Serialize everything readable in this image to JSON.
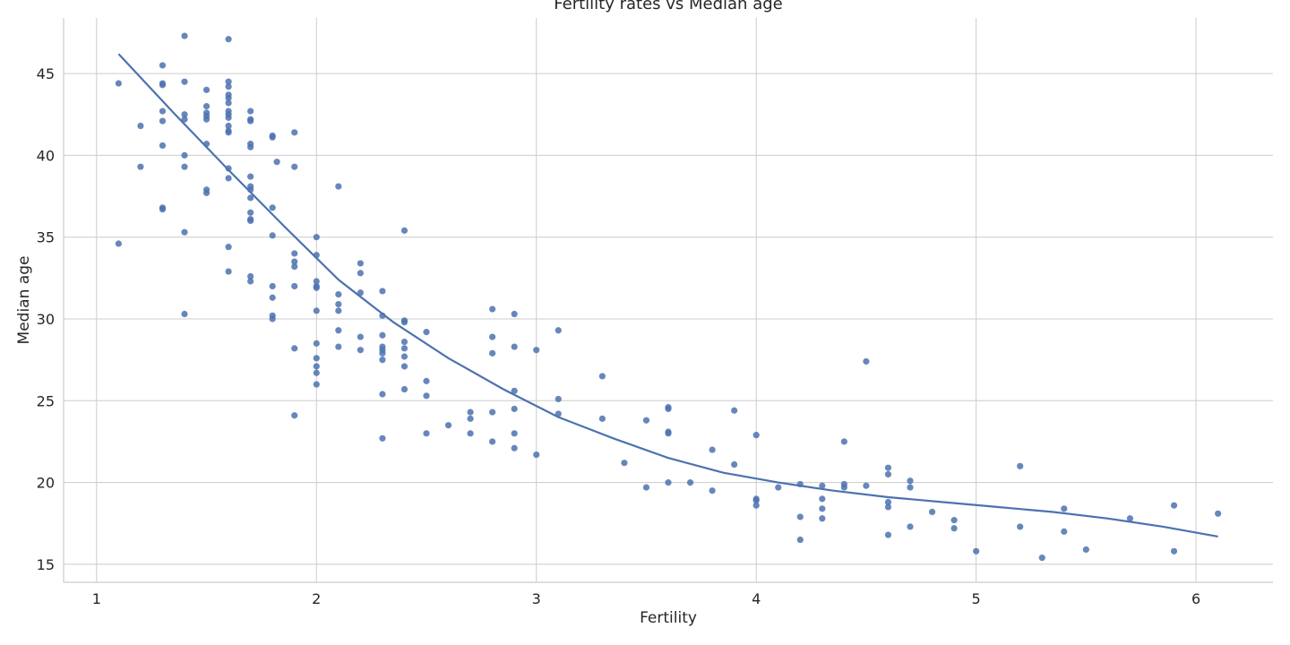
{
  "chart_data": {
    "type": "scatter",
    "title": "Fertility rates vs Median age",
    "xlabel": "Fertility",
    "ylabel": "Median age",
    "xlim": [
      0.85,
      6.35
    ],
    "ylim": [
      13.9,
      48.4
    ],
    "xticks": [
      "1",
      "2",
      "3",
      "4",
      "5",
      "6"
    ],
    "yticks": [
      "15",
      "20",
      "25",
      "30",
      "35",
      "40",
      "45"
    ],
    "grid": true,
    "colors": {
      "points": "#4c72b0",
      "line": "#4c72b0",
      "grid": "#cccccc",
      "axis": "#cccccc"
    },
    "points": [
      [
        1.1,
        44.4
      ],
      [
        1.1,
        34.6
      ],
      [
        1.2,
        41.8
      ],
      [
        1.2,
        39.3
      ],
      [
        1.3,
        45.5
      ],
      [
        1.3,
        44.4
      ],
      [
        1.3,
        44.3
      ],
      [
        1.3,
        42.7
      ],
      [
        1.3,
        42.1
      ],
      [
        1.3,
        40.6
      ],
      [
        1.3,
        36.8
      ],
      [
        1.3,
        36.7
      ],
      [
        1.4,
        47.3
      ],
      [
        1.4,
        44.5
      ],
      [
        1.4,
        42.5
      ],
      [
        1.4,
        42.2
      ],
      [
        1.4,
        40.0
      ],
      [
        1.4,
        39.3
      ],
      [
        1.4,
        35.3
      ],
      [
        1.4,
        30.3
      ],
      [
        1.5,
        44.0
      ],
      [
        1.5,
        43.0
      ],
      [
        1.5,
        42.6
      ],
      [
        1.5,
        42.4
      ],
      [
        1.5,
        42.2
      ],
      [
        1.5,
        40.7
      ],
      [
        1.5,
        37.9
      ],
      [
        1.5,
        37.7
      ],
      [
        1.6,
        47.1
      ],
      [
        1.6,
        44.5
      ],
      [
        1.6,
        44.2
      ],
      [
        1.6,
        43.7
      ],
      [
        1.6,
        43.5
      ],
      [
        1.6,
        43.2
      ],
      [
        1.6,
        42.7
      ],
      [
        1.6,
        42.5
      ],
      [
        1.6,
        42.3
      ],
      [
        1.6,
        41.8
      ],
      [
        1.6,
        41.5
      ],
      [
        1.6,
        41.4
      ],
      [
        1.6,
        39.2
      ],
      [
        1.6,
        38.6
      ],
      [
        1.6,
        34.4
      ],
      [
        1.6,
        32.9
      ],
      [
        1.7,
        42.7
      ],
      [
        1.7,
        42.2
      ],
      [
        1.7,
        42.1
      ],
      [
        1.7,
        40.7
      ],
      [
        1.7,
        40.5
      ],
      [
        1.7,
        38.7
      ],
      [
        1.7,
        38.1
      ],
      [
        1.7,
        37.9
      ],
      [
        1.7,
        37.4
      ],
      [
        1.7,
        36.5
      ],
      [
        1.7,
        36.1
      ],
      [
        1.7,
        36.0
      ],
      [
        1.7,
        32.6
      ],
      [
        1.7,
        32.3
      ],
      [
        1.8,
        41.2
      ],
      [
        1.8,
        41.1
      ],
      [
        1.8,
        36.8
      ],
      [
        1.8,
        35.1
      ],
      [
        1.8,
        32.0
      ],
      [
        1.8,
        31.3
      ],
      [
        1.8,
        30.2
      ],
      [
        1.8,
        30.0
      ],
      [
        1.82,
        39.6
      ],
      [
        1.9,
        41.4
      ],
      [
        1.9,
        39.3
      ],
      [
        1.9,
        34.0
      ],
      [
        1.9,
        33.5
      ],
      [
        1.9,
        33.2
      ],
      [
        1.9,
        32.0
      ],
      [
        1.9,
        28.2
      ],
      [
        1.9,
        24.1
      ],
      [
        2.0,
        35.0
      ],
      [
        2.0,
        33.9
      ],
      [
        2.0,
        32.3
      ],
      [
        2.0,
        32.0
      ],
      [
        2.0,
        31.9
      ],
      [
        2.0,
        30.5
      ],
      [
        2.0,
        28.5
      ],
      [
        2.0,
        27.6
      ],
      [
        2.0,
        27.1
      ],
      [
        2.0,
        26.7
      ],
      [
        2.0,
        26.0
      ],
      [
        2.1,
        38.1
      ],
      [
        2.1,
        31.5
      ],
      [
        2.1,
        30.9
      ],
      [
        2.1,
        30.5
      ],
      [
        2.1,
        29.3
      ],
      [
        2.1,
        28.3
      ],
      [
        2.2,
        33.4
      ],
      [
        2.2,
        32.8
      ],
      [
        2.2,
        31.6
      ],
      [
        2.2,
        28.9
      ],
      [
        2.2,
        28.1
      ],
      [
        2.3,
        31.7
      ],
      [
        2.3,
        30.2
      ],
      [
        2.3,
        29.0
      ],
      [
        2.3,
        28.3
      ],
      [
        2.3,
        28.1
      ],
      [
        2.3,
        27.9
      ],
      [
        2.3,
        27.5
      ],
      [
        2.3,
        25.4
      ],
      [
        2.3,
        22.7
      ],
      [
        2.4,
        35.4
      ],
      [
        2.4,
        29.9
      ],
      [
        2.4,
        29.8
      ],
      [
        2.4,
        28.6
      ],
      [
        2.4,
        28.2
      ],
      [
        2.4,
        27.7
      ],
      [
        2.4,
        27.1
      ],
      [
        2.4,
        25.7
      ],
      [
        2.5,
        29.2
      ],
      [
        2.5,
        26.2
      ],
      [
        2.5,
        25.3
      ],
      [
        2.5,
        23.0
      ],
      [
        2.6,
        23.5
      ],
      [
        2.7,
        24.3
      ],
      [
        2.7,
        23.9
      ],
      [
        2.7,
        23.0
      ],
      [
        2.8,
        30.6
      ],
      [
        2.8,
        28.9
      ],
      [
        2.8,
        27.9
      ],
      [
        2.8,
        24.3
      ],
      [
        2.8,
        22.5
      ],
      [
        2.9,
        30.3
      ],
      [
        2.9,
        28.3
      ],
      [
        2.9,
        25.6
      ],
      [
        2.9,
        24.5
      ],
      [
        2.9,
        23.0
      ],
      [
        2.9,
        22.1
      ],
      [
        3.0,
        28.1
      ],
      [
        3.0,
        21.7
      ],
      [
        3.1,
        29.3
      ],
      [
        3.1,
        25.1
      ],
      [
        3.1,
        24.2
      ],
      [
        3.3,
        26.5
      ],
      [
        3.3,
        23.9
      ],
      [
        3.4,
        21.2
      ],
      [
        3.5,
        23.8
      ],
      [
        3.5,
        19.7
      ],
      [
        3.6,
        24.6
      ],
      [
        3.6,
        24.5
      ],
      [
        3.6,
        23.1
      ],
      [
        3.6,
        23.0
      ],
      [
        3.6,
        20.0
      ],
      [
        3.7,
        20.0
      ],
      [
        3.8,
        22.0
      ],
      [
        3.8,
        19.5
      ],
      [
        3.9,
        24.4
      ],
      [
        3.9,
        21.1
      ],
      [
        4.0,
        22.9
      ],
      [
        4.0,
        19.0
      ],
      [
        4.0,
        18.9
      ],
      [
        4.0,
        18.6
      ],
      [
        4.1,
        19.7
      ],
      [
        4.2,
        19.9
      ],
      [
        4.2,
        17.9
      ],
      [
        4.2,
        16.5
      ],
      [
        4.3,
        19.8
      ],
      [
        4.3,
        19.0
      ],
      [
        4.3,
        18.4
      ],
      [
        4.3,
        17.8
      ],
      [
        4.4,
        22.5
      ],
      [
        4.4,
        19.9
      ],
      [
        4.4,
        19.7
      ],
      [
        4.5,
        27.4
      ],
      [
        4.5,
        19.8
      ],
      [
        4.6,
        20.9
      ],
      [
        4.6,
        20.5
      ],
      [
        4.6,
        18.8
      ],
      [
        4.6,
        18.5
      ],
      [
        4.6,
        16.8
      ],
      [
        4.7,
        20.1
      ],
      [
        4.7,
        19.7
      ],
      [
        4.7,
        17.3
      ],
      [
        4.8,
        18.2
      ],
      [
        4.9,
        17.7
      ],
      [
        4.9,
        17.2
      ],
      [
        5.0,
        15.8
      ],
      [
        5.2,
        21.0
      ],
      [
        5.2,
        17.3
      ],
      [
        5.3,
        15.4
      ],
      [
        5.4,
        18.4
      ],
      [
        5.4,
        17.0
      ],
      [
        5.5,
        15.9
      ],
      [
        5.7,
        17.8
      ],
      [
        5.9,
        18.6
      ],
      [
        5.9,
        15.8
      ],
      [
        6.1,
        18.1
      ]
    ],
    "fit_line": {
      "x": [
        1.1,
        1.35,
        1.6,
        1.85,
        2.1,
        2.35,
        2.6,
        2.85,
        3.1,
        3.35,
        3.6,
        3.85,
        4.1,
        4.35,
        4.6,
        4.85,
        5.1,
        5.35,
        5.6,
        5.85,
        6.1
      ],
      "y": [
        46.2,
        42.6,
        39.1,
        35.7,
        32.4,
        29.8,
        27.6,
        25.7,
        24.0,
        22.7,
        21.5,
        20.6,
        20.0,
        19.5,
        19.1,
        18.8,
        18.5,
        18.2,
        17.8,
        17.3,
        16.7
      ]
    }
  }
}
